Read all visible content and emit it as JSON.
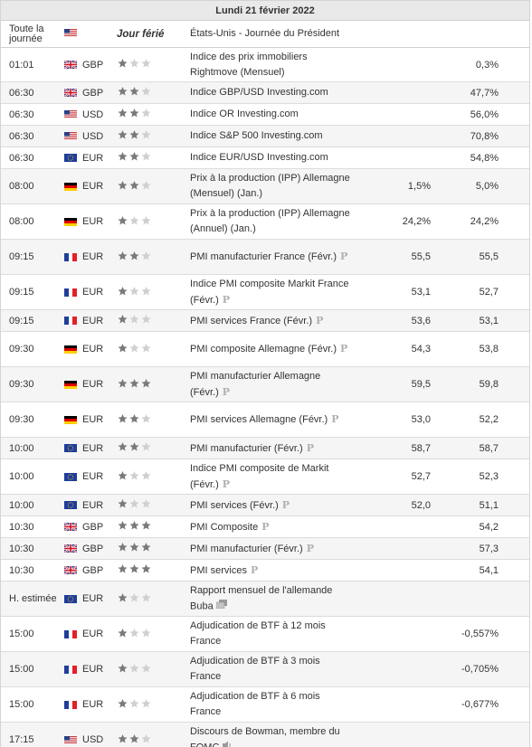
{
  "header": {
    "date": "Lundi 21 février 2022"
  },
  "holiday_row": {
    "time": "Toute la journée",
    "stars_label": "Jour férié",
    "event": "États-Unis - Journée du Président",
    "flag": "us"
  },
  "colors": {
    "star_on": "#7a7a7a",
    "star_off": "#d0d0d0",
    "row_alt": "#f5f5f5"
  },
  "rows": [
    {
      "time": "01:01",
      "flag": "gb",
      "currency": "GBP",
      "stars": 1,
      "event": "Indice des prix immobiliers Rightmove (Mensuel)",
      "prev": "",
      "actual": "0,3%",
      "icon": "",
      "h": 38
    },
    {
      "time": "06:30",
      "flag": "gb",
      "currency": "GBP",
      "stars": 2,
      "event": "Indice GBP/USD Investing.com",
      "prev": "",
      "actual": "47,7%",
      "icon": "",
      "h": 24
    },
    {
      "time": "06:30",
      "flag": "us",
      "currency": "USD",
      "stars": 2,
      "event": "Indice OR Investing.com",
      "prev": "",
      "actual": "56,0%",
      "icon": "",
      "h": 24
    },
    {
      "time": "06:30",
      "flag": "us",
      "currency": "USD",
      "stars": 2,
      "event": "Indice S&P 500 Investing.com",
      "prev": "",
      "actual": "70,8%",
      "icon": "",
      "h": 24
    },
    {
      "time": "06:30",
      "flag": "eu",
      "currency": "EUR",
      "stars": 2,
      "event": "Indice EUR/USD Investing.com",
      "prev": "",
      "actual": "54,8%",
      "icon": "",
      "h": 24
    },
    {
      "time": "08:00",
      "flag": "de",
      "currency": "EUR",
      "stars": 2,
      "event": "Prix à la production (IPP) Allemagne (Mensuel) (Jan.)",
      "prev": "1,5%",
      "actual": "5,0%",
      "icon": "",
      "h": 39
    },
    {
      "time": "08:00",
      "flag": "de",
      "currency": "EUR",
      "stars": 1,
      "event": "Prix à la production (IPP) Allemagne (Annuel) (Jan.)",
      "prev": "24,2%",
      "actual": "24,2%",
      "icon": "",
      "h": 39
    },
    {
      "time": "09:15",
      "flag": "fr",
      "currency": "EUR",
      "stars": 2,
      "event": "PMI manufacturier France (Févr.)",
      "prev": "55,5",
      "actual": "55,5",
      "icon": "p",
      "h": 39
    },
    {
      "time": "09:15",
      "flag": "fr",
      "currency": "EUR",
      "stars": 1,
      "event": "Indice PMI composite Markit France (Févr.)",
      "prev": "53,1",
      "actual": "52,7",
      "icon": "p",
      "h": 39
    },
    {
      "time": "09:15",
      "flag": "fr",
      "currency": "EUR",
      "stars": 1,
      "event": "PMI services France (Févr.)",
      "prev": "53,6",
      "actual": "53,1",
      "icon": "p",
      "h": 24
    },
    {
      "time": "09:30",
      "flag": "de",
      "currency": "EUR",
      "stars": 1,
      "event": "PMI composite Allemagne (Févr.)",
      "prev": "54,3",
      "actual": "53,8",
      "icon": "p",
      "h": 39
    },
    {
      "time": "09:30",
      "flag": "de",
      "currency": "EUR",
      "stars": 3,
      "event": "PMI manufacturier Allemagne (Févr.)",
      "prev": "59,5",
      "actual": "59,8",
      "icon": "p",
      "h": 39
    },
    {
      "time": "09:30",
      "flag": "de",
      "currency": "EUR",
      "stars": 2,
      "event": "PMI services Allemagne (Févr.)",
      "prev": "53,0",
      "actual": "52,2",
      "icon": "p",
      "h": 39
    },
    {
      "time": "10:00",
      "flag": "eu",
      "currency": "EUR",
      "stars": 2,
      "event": "PMI manufacturier (Févr.)",
      "prev": "58,7",
      "actual": "58,7",
      "icon": "p",
      "h": 24
    },
    {
      "time": "10:00",
      "flag": "eu",
      "currency": "EUR",
      "stars": 1,
      "event": "Indice PMI composite de Markit (Févr.)",
      "prev": "52,7",
      "actual": "52,3",
      "icon": "p",
      "h": 39
    },
    {
      "time": "10:00",
      "flag": "eu",
      "currency": "EUR",
      "stars": 1,
      "event": "PMI services (Févr.)",
      "prev": "52,0",
      "actual": "51,1",
      "icon": "p",
      "h": 24
    },
    {
      "time": "10:30",
      "flag": "gb",
      "currency": "GBP",
      "stars": 3,
      "event": "PMI Composite",
      "prev": "",
      "actual": "54,2",
      "icon": "p",
      "h": 24
    },
    {
      "time": "10:30",
      "flag": "gb",
      "currency": "GBP",
      "stars": 3,
      "event": "PMI manufacturier (Févr.)",
      "prev": "",
      "actual": "57,3",
      "icon": "p",
      "h": 24
    },
    {
      "time": "10:30",
      "flag": "gb",
      "currency": "GBP",
      "stars": 3,
      "event": "PMI services",
      "prev": "",
      "actual": "54,1",
      "icon": "p",
      "h": 24
    },
    {
      "time": "H. estimée",
      "flag": "eu",
      "currency": "EUR",
      "stars": 1,
      "event": "Rapport mensuel de l'allemande Buba",
      "prev": "",
      "actual": "",
      "icon": "doc",
      "h": 39
    },
    {
      "time": "15:00",
      "flag": "fr",
      "currency": "EUR",
      "stars": 1,
      "event": "Adjudication de BTF à 12 mois France",
      "prev": "",
      "actual": "-0,557%",
      "icon": "",
      "h": 39
    },
    {
      "time": "15:00",
      "flag": "fr",
      "currency": "EUR",
      "stars": 1,
      "event": "Adjudication de BTF à 3 mois France",
      "prev": "",
      "actual": "-0,705%",
      "icon": "",
      "h": 39
    },
    {
      "time": "15:00",
      "flag": "fr",
      "currency": "EUR",
      "stars": 1,
      "event": "Adjudication de BTF à 6 mois France",
      "prev": "",
      "actual": "-0,677%",
      "icon": "",
      "h": 39
    },
    {
      "time": "17:15",
      "flag": "us",
      "currency": "USD",
      "stars": 2,
      "event": "Discours de Bowman, membre du FOMC",
      "prev": "",
      "actual": "",
      "icon": "speaker",
      "h": 39
    }
  ]
}
